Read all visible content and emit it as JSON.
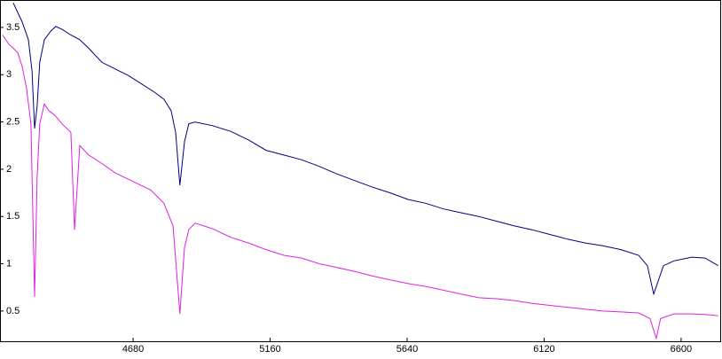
{
  "chart_data": {
    "type": "line",
    "xlim": [
      4223,
      6737
    ],
    "ylim": [
      0.18,
      3.79
    ],
    "xticks": [
      4680,
      5160,
      5640,
      6120,
      6600
    ],
    "yticks": [
      0.5,
      1,
      1.5,
      2,
      2.5,
      3,
      3.5
    ],
    "grid": false,
    "series": [
      {
        "color": "#000080",
        "x": [
          4260,
          4291,
          4313,
          4326,
          4335,
          4344,
          4353,
          4369,
          4391,
          4409,
          4431,
          4462,
          4493,
          4524,
          4571,
          4618,
          4664,
          4711,
          4757,
          4788,
          4813,
          4829,
          4844,
          4860,
          4875,
          4897,
          4959,
          5022,
          5084,
          5146,
          5208,
          5270,
          5332,
          5394,
          5456,
          5519,
          5581,
          5643,
          5705,
          5767,
          5829,
          5891,
          5954,
          6016,
          6078,
          6140,
          6202,
          6264,
          6326,
          6389,
          6451,
          6482,
          6504,
          6519,
          6538,
          6575,
          6637,
          6684,
          6730
        ],
        "values": [
          3.76,
          3.56,
          3.37,
          3.04,
          2.43,
          2.67,
          3.13,
          3.37,
          3.46,
          3.51,
          3.48,
          3.42,
          3.37,
          3.28,
          3.13,
          3.06,
          2.99,
          2.9,
          2.81,
          2.74,
          2.62,
          2.39,
          1.83,
          2.29,
          2.48,
          2.5,
          2.46,
          2.4,
          2.31,
          2.2,
          2.15,
          2.1,
          2.03,
          1.95,
          1.88,
          1.81,
          1.75,
          1.68,
          1.64,
          1.58,
          1.54,
          1.5,
          1.45,
          1.4,
          1.36,
          1.31,
          1.26,
          1.22,
          1.19,
          1.15,
          1.09,
          0.98,
          0.68,
          0.81,
          0.98,
          1.03,
          1.07,
          1.06,
          0.98
        ]
      },
      {
        "color": "#e020e0",
        "x": [
          4223,
          4245,
          4260,
          4276,
          4291,
          4307,
          4322,
          4335,
          4344,
          4353,
          4369,
          4385,
          4406,
          4431,
          4462,
          4475,
          4493,
          4524,
          4571,
          4618,
          4680,
          4742,
          4788,
          4820,
          4844,
          4860,
          4875,
          4897,
          4959,
          5022,
          5084,
          5146,
          5208,
          5270,
          5332,
          5394,
          5456,
          5519,
          5581,
          5643,
          5705,
          5767,
          5829,
          5891,
          5954,
          6016,
          6078,
          6140,
          6202,
          6264,
          6326,
          6389,
          6451,
          6491,
          6513,
          6528,
          6575,
          6637,
          6699,
          6730
        ],
        "values": [
          3.42,
          3.32,
          3.28,
          3.23,
          3.09,
          2.85,
          2.48,
          0.65,
          1.92,
          2.48,
          2.69,
          2.62,
          2.57,
          2.48,
          2.39,
          1.36,
          2.25,
          2.15,
          2.06,
          1.96,
          1.87,
          1.78,
          1.64,
          1.4,
          0.47,
          1.17,
          1.36,
          1.43,
          1.37,
          1.28,
          1.22,
          1.15,
          1.09,
          1.06,
          1.0,
          0.96,
          0.92,
          0.87,
          0.83,
          0.79,
          0.76,
          0.72,
          0.68,
          0.64,
          0.63,
          0.61,
          0.58,
          0.56,
          0.54,
          0.52,
          0.5,
          0.49,
          0.48,
          0.42,
          0.21,
          0.42,
          0.47,
          0.47,
          0.46,
          0.45
        ]
      }
    ]
  }
}
